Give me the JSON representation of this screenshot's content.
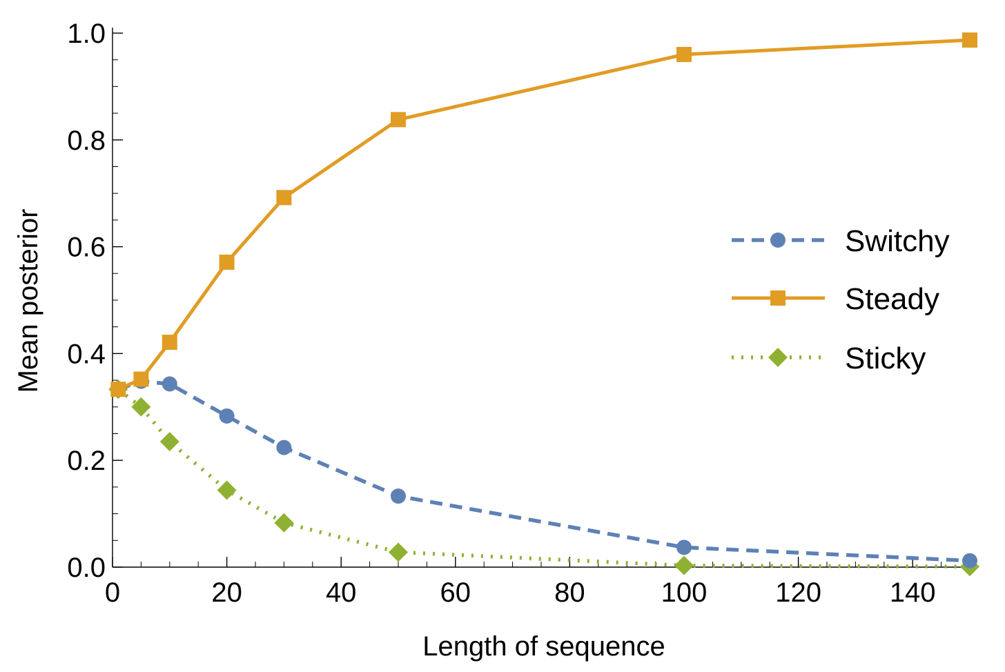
{
  "chart_data": {
    "type": "line",
    "title": "",
    "xlabel": "Length of sequence",
    "ylabel": "Mean posterior",
    "xlim": [
      0,
      150
    ],
    "ylim": [
      0,
      1
    ],
    "x_ticks": [
      0,
      20,
      40,
      60,
      80,
      100,
      120,
      140
    ],
    "x_tick_labels": [
      "0",
      "20",
      "40",
      "60",
      "80",
      "100",
      "120",
      "140"
    ],
    "y_ticks": [
      0,
      0.2,
      0.4,
      0.6,
      0.8,
      1.0
    ],
    "y_tick_labels": [
      "0.0",
      "0.2",
      "0.4",
      "0.6",
      "0.8",
      "1.0"
    ],
    "grid": false,
    "legend_position": "right",
    "x": [
      1,
      5,
      10,
      20,
      30,
      50,
      100,
      150
    ],
    "series": [
      {
        "name": "Switchy",
        "values": [
          0.333,
          0.348,
          0.343,
          0.283,
          0.224,
          0.133,
          0.037,
          0.012
        ],
        "color": "#5e81b5",
        "line_style": "dashed",
        "marker": "circle"
      },
      {
        "name": "Steady",
        "values": [
          0.333,
          0.352,
          0.421,
          0.571,
          0.692,
          0.838,
          0.96,
          0.987
        ],
        "color": "#e19c24",
        "line_style": "solid",
        "marker": "square"
      },
      {
        "name": "Sticky",
        "values": [
          0.333,
          0.3,
          0.235,
          0.144,
          0.083,
          0.028,
          0.003,
          0.001
        ],
        "color": "#8fb131",
        "line_style": "dotted",
        "marker": "diamond"
      }
    ]
  }
}
